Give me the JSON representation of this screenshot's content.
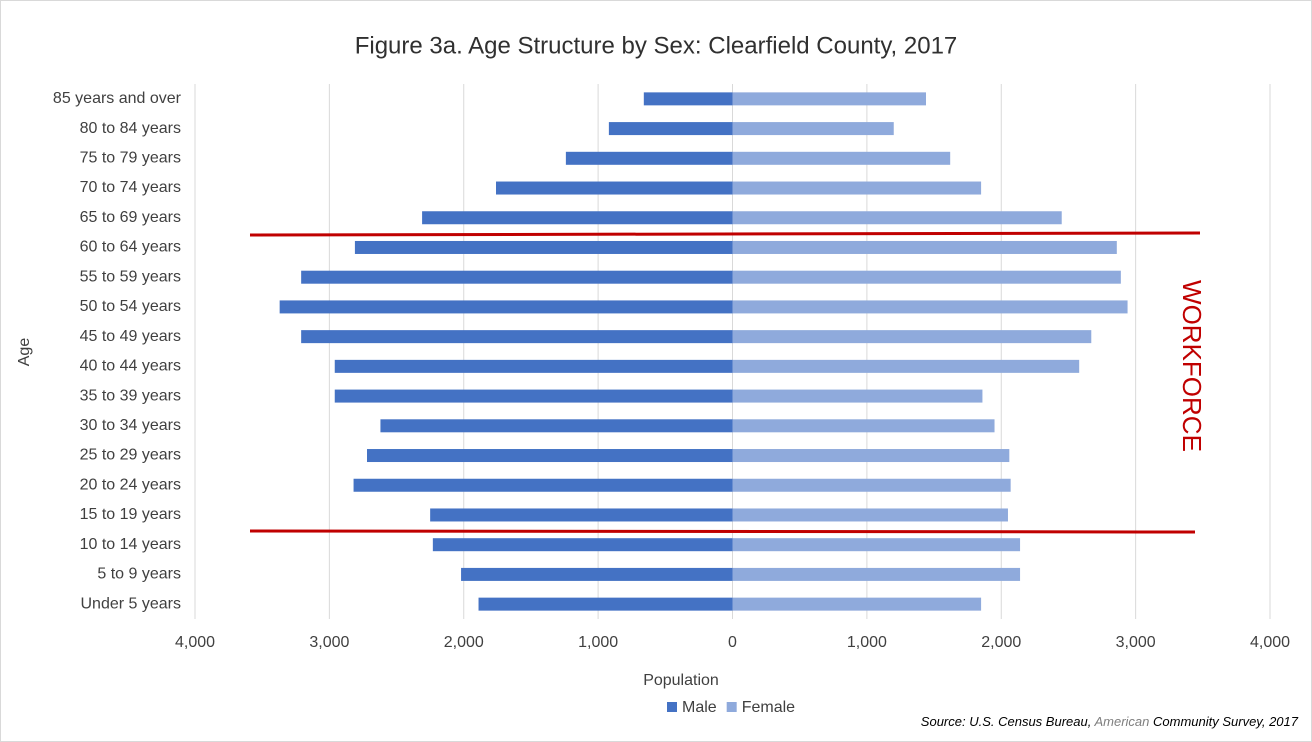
{
  "chart_data": {
    "type": "bar",
    "orientation": "horizontal",
    "title": "Figure 3a. Age Structure by Sex: Clearfield County, 2017",
    "x_label": "Population",
    "y_label": "Age",
    "categories": [
      "85 years and over",
      "80 to 84 years",
      "75 to 79 years",
      "70 to 74 years",
      "65 to 69 years",
      "60 to 64 years",
      "55 to 59 years",
      "50 to 54 years",
      "45 to 49 years",
      "40 to 44 years",
      "35 to 39 years",
      "30 to 34 years",
      "25 to 29 years",
      "20 to 24 years",
      "15 to 19 years",
      "10 to 14 years",
      "5 to 9 years",
      "Under 5 years"
    ],
    "series": [
      {
        "name": "Male",
        "color": "#4472c4",
        "values": [
          -660,
          -920,
          -1240,
          -1760,
          -2310,
          -2810,
          -3210,
          -3370,
          -3210,
          -2960,
          -2960,
          -2620,
          -2720,
          -2820,
          -2250,
          -2230,
          -2020,
          -1890
        ]
      },
      {
        "name": "Female",
        "color": "#8faadc",
        "values": [
          1440,
          1200,
          1620,
          1850,
          2450,
          2860,
          2890,
          2940,
          2670,
          2580,
          1860,
          1950,
          2060,
          2070,
          2050,
          2140,
          2140,
          1850
        ]
      }
    ],
    "xlim": [
      -4000,
      4000
    ],
    "xticks": [
      {
        "value": -4000,
        "label": "4,000"
      },
      {
        "value": -3000,
        "label": "3,000"
      },
      {
        "value": -2000,
        "label": "2,000"
      },
      {
        "value": -1000,
        "label": "1,000"
      },
      0,
      {
        "value": 1000,
        "label": "1,000"
      },
      {
        "value": 2000,
        "label": "2,000"
      },
      {
        "value": 3000,
        "label": "3,000"
      },
      {
        "value": 4000,
        "label": "4,000"
      }
    ],
    "grid": true,
    "legend": "bottom",
    "annotations": {
      "workforce": "WORKFORCE",
      "source": [
        "Source: U.S. Census Bureau, ",
        "American",
        " Community Survey, 2017"
      ]
    }
  }
}
